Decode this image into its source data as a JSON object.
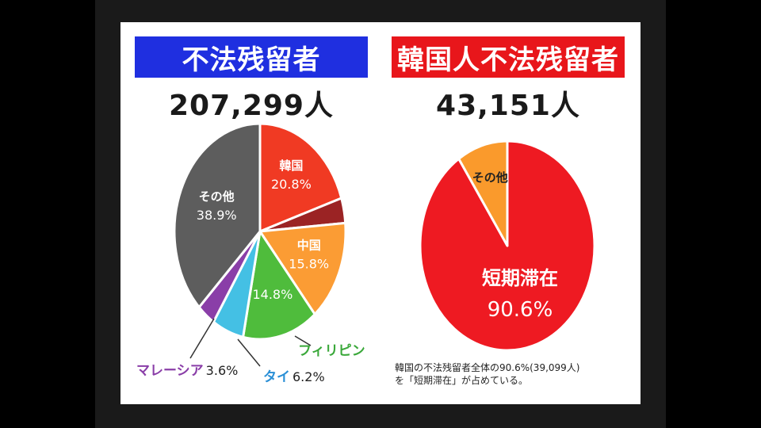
{
  "chart_data": [
    {
      "type": "pie",
      "title": "不法残留者",
      "total": "207,299人",
      "slices": [
        {
          "label": "韓国",
          "value": 20.8,
          "value_label": "20.8%",
          "color": "#f03a23",
          "label_color": "#ffffff"
        },
        {
          "label": "",
          "value": 3.9,
          "value_label": "",
          "color": "#9b2324",
          "label_color": "#ffffff"
        },
        {
          "label": "中国",
          "value": 15.8,
          "value_label": "15.8%",
          "color": "#fb9c34",
          "label_color": "#ffffff"
        },
        {
          "label": "フィリピン",
          "value": 14.8,
          "value_label": "14.8%",
          "color": "#4fbc3c",
          "label_color": "#3aa83a"
        },
        {
          "label": "タイ",
          "value": 6.2,
          "value_label": "6.2%",
          "color": "#44c0e4",
          "label_color": "#2a8fd6"
        },
        {
          "label": "マレーシア",
          "value": 3.6,
          "value_label": "3.6%",
          "color": "#8a3ea8",
          "label_color": "#8a3ea8"
        },
        {
          "label": "その他",
          "value": 38.9,
          "value_label": "38.9%",
          "color": "#5d5d5d",
          "label_color": "#ffffff"
        }
      ]
    },
    {
      "type": "pie",
      "title": "韓国人不法残留者",
      "total": "43,151人",
      "slices": [
        {
          "label": "短期滞在",
          "value": 90.6,
          "value_label": "90.6%",
          "color": "#ee1a22",
          "label_color": "#ffffff"
        },
        {
          "label": "その他",
          "value": 9.4,
          "value_label": "",
          "color": "#fa9a2c",
          "label_color": "#222222"
        }
      ]
    }
  ],
  "note": {
    "line1": "韓国の不法残留者全体の90.6%(39,099人)",
    "line2": "を「短期滞在」が占めている。"
  }
}
